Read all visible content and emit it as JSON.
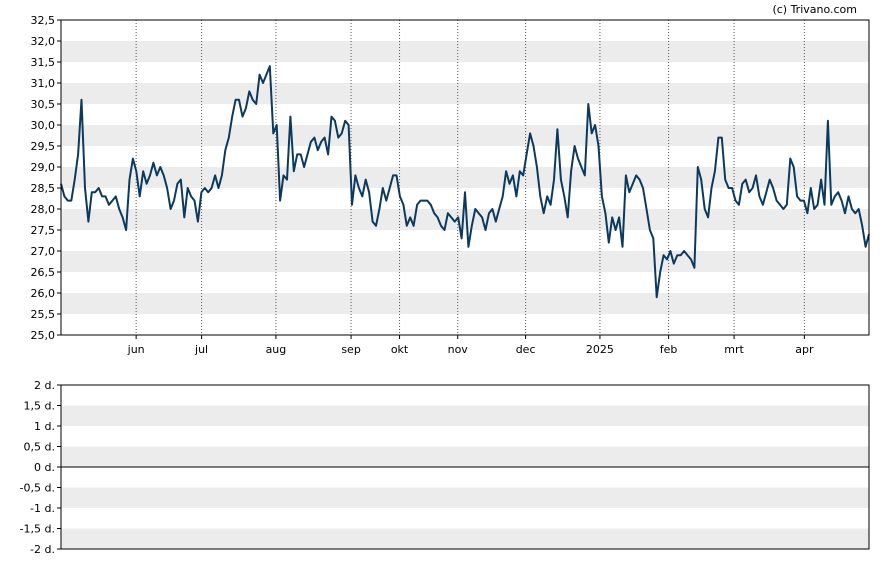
{
  "credit": "(c) Trivano.com",
  "colors": {
    "line": "#0b3a5e",
    "band": "#ececec",
    "axis": "#000000",
    "grid": "#555555"
  },
  "chart_data": [
    {
      "type": "line",
      "ylim": [
        25.0,
        32.5
      ],
      "y_ticks": [
        "25,0",
        "25,5",
        "26,0",
        "26,5",
        "27,0",
        "27,5",
        "28,0",
        "28,5",
        "29,0",
        "29,5",
        "30,0",
        "30,5",
        "31,0",
        "31,5",
        "32,0",
        "32,5"
      ],
      "x_ticks": [
        "jun",
        "jul",
        "aug",
        "sep",
        "okt",
        "nov",
        "dec",
        "2025",
        "feb",
        "mrt",
        "apr"
      ],
      "x_tick_pos": [
        0.093,
        0.174,
        0.266,
        0.359,
        0.419,
        0.491,
        0.575,
        0.667,
        0.752,
        0.833,
        0.92
      ],
      "grid": "vertical dotted at month ticks, alternating horizontal bands",
      "series": [
        {
          "values": [
            28.6,
            28.3,
            28.2,
            28.2,
            28.7,
            29.3,
            30.6,
            28.5,
            27.7,
            28.4,
            28.4,
            28.5,
            28.3,
            28.3,
            28.1,
            28.2,
            28.3,
            28.0,
            27.8,
            27.5,
            28.7,
            29.2,
            28.9,
            28.3,
            28.9,
            28.6,
            28.8,
            29.1,
            28.8,
            29.0,
            28.8,
            28.5,
            28.0,
            28.2,
            28.6,
            28.7,
            27.8,
            28.5,
            28.3,
            28.2,
            27.7,
            28.4,
            28.5,
            28.4,
            28.5,
            28.8,
            28.5,
            28.8,
            29.4,
            29.7,
            30.2,
            30.6,
            30.6,
            30.2,
            30.4,
            30.8,
            30.6,
            30.5,
            31.2,
            31.0,
            31.2,
            31.4,
            29.8,
            30.0,
            28.2,
            28.8,
            28.7,
            30.2,
            28.9,
            29.3,
            29.3,
            29.0,
            29.3,
            29.6,
            29.7,
            29.4,
            29.6,
            29.7,
            29.3,
            30.2,
            30.1,
            29.7,
            29.8,
            30.1,
            30.0,
            28.1,
            28.8,
            28.5,
            28.3,
            28.7,
            28.4,
            27.7,
            27.6,
            28.0,
            28.5,
            28.2,
            28.5,
            28.8,
            28.8,
            28.3,
            28.1,
            27.6,
            27.8,
            27.6,
            28.1,
            28.2,
            28.2,
            28.2,
            28.1,
            27.9,
            27.8,
            27.6,
            27.5,
            27.9,
            27.8,
            27.7,
            27.8,
            27.3,
            28.4,
            27.1,
            27.6,
            28.0,
            27.9,
            27.8,
            27.5,
            27.9,
            28.0,
            27.7,
            28.0,
            28.3,
            28.9,
            28.6,
            28.8,
            28.3,
            28.9,
            28.8,
            29.3,
            29.8,
            29.5,
            29.0,
            28.3,
            27.9,
            28.3,
            28.1,
            28.7,
            29.9,
            28.7,
            28.3,
            27.8,
            28.9,
            29.5,
            29.2,
            29.0,
            28.8,
            30.5,
            29.8,
            30.0,
            29.5,
            28.3,
            27.9,
            27.2,
            27.8,
            27.5,
            27.8,
            27.1,
            28.8,
            28.4,
            28.6,
            28.8,
            28.7,
            28.5,
            28.0,
            27.5,
            27.3,
            25.9,
            26.5,
            26.9,
            26.8,
            27.0,
            26.7,
            26.9,
            26.9,
            27.0,
            26.9,
            26.8,
            26.6,
            29.0,
            28.7,
            28.0,
            27.8,
            28.5,
            28.9,
            29.7,
            29.7,
            28.7,
            28.5,
            28.5,
            28.2,
            28.1,
            28.6,
            28.7,
            28.4,
            28.5,
            28.8,
            28.3,
            28.1,
            28.4,
            28.7,
            28.5,
            28.2,
            28.1,
            28.0,
            28.1,
            29.2,
            29.0,
            28.3,
            28.2,
            28.2,
            27.9,
            28.5,
            28.0,
            28.1,
            28.7,
            28.1,
            30.1,
            28.1,
            28.3,
            28.4,
            28.2,
            27.9,
            28.3,
            28.0,
            27.9,
            28.0,
            27.6,
            27.1,
            27.4
          ]
        }
      ]
    },
    {
      "type": "line",
      "ylim": [
        -2,
        2
      ],
      "y_ticks": [
        "2 d.",
        "1,5 d.",
        "1 d.",
        "0,5 d.",
        "0 d.",
        "-0,5 d.",
        "-1 d.",
        "-1,5 d.",
        "-2 d."
      ],
      "grid": "alternating horizontal bands, zero line",
      "series": [
        {
          "values": [
            0,
            0
          ]
        }
      ]
    }
  ]
}
